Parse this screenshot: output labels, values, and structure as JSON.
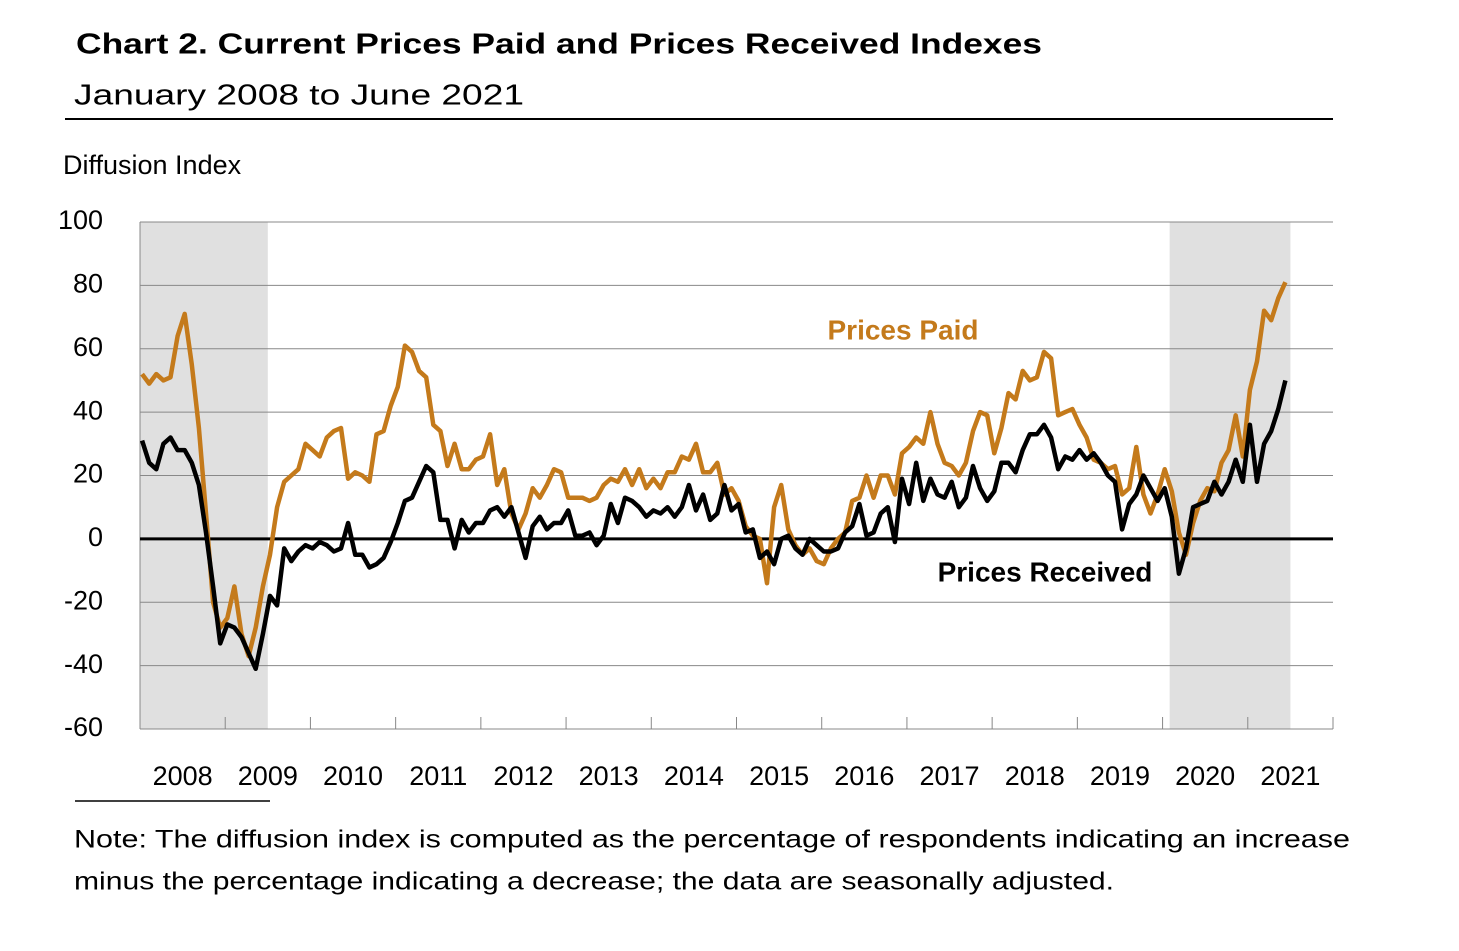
{
  "chart_data": {
    "type": "line",
    "title": "Chart 2. Current Prices Paid and Prices Received Indexes",
    "subtitle": "January 2008 to June 2021",
    "y_label": "Diffusion Index",
    "note": [
      "Note: The diffusion index is computed as the percentage of respondents indicating an increase",
      "minus the percentage indicating a decrease; the data are seasonally adjusted."
    ],
    "categories": [
      "2008",
      null,
      null,
      null,
      null,
      null,
      null,
      null,
      null,
      null,
      null,
      null,
      "2009",
      null,
      null,
      null,
      null,
      null,
      null,
      null,
      null,
      null,
      null,
      null,
      "2010",
      null,
      null,
      null,
      null,
      null,
      null,
      null,
      null,
      null,
      null,
      null,
      "2011",
      null,
      null,
      null,
      null,
      null,
      null,
      null,
      null,
      null,
      null,
      null,
      "2012",
      null,
      null,
      null,
      null,
      null,
      null,
      null,
      null,
      null,
      null,
      null,
      "2013",
      null,
      null,
      null,
      null,
      null,
      null,
      null,
      null,
      null,
      null,
      null,
      "2014",
      null,
      null,
      null,
      null,
      null,
      null,
      null,
      null,
      null,
      null,
      null,
      "2015",
      null,
      null,
      null,
      null,
      null,
      null,
      null,
      null,
      null,
      null,
      null,
      "2016",
      null,
      null,
      null,
      null,
      null,
      null,
      null,
      null,
      null,
      null,
      null,
      "2017",
      null,
      null,
      null,
      null,
      null,
      null,
      null,
      null,
      null,
      null,
      null,
      "2018",
      null,
      null,
      null,
      null,
      null,
      null,
      null,
      null,
      null,
      null,
      null,
      "2019",
      null,
      null,
      null,
      null,
      null,
      null,
      null,
      null,
      null,
      null,
      null,
      "2020",
      null,
      null,
      null,
      null,
      null,
      null,
      null,
      null,
      null,
      null,
      null,
      "2021",
      null,
      null,
      null,
      null,
      null
    ],
    "series": [
      {
        "name": "Prices Paid",
        "color": "#c47a1b",
        "values": [
          52,
          49,
          52,
          50,
          51,
          64,
          71,
          55,
          35,
          8,
          -20,
          -28,
          -25,
          -15,
          -30,
          -37,
          -28,
          -15,
          -5,
          10,
          18,
          20,
          22,
          30,
          28,
          26,
          32,
          34,
          35,
          19,
          21,
          20,
          18,
          33,
          34,
          42,
          48,
          61,
          59,
          53,
          51,
          36,
          34,
          23,
          30,
          22,
          22,
          25,
          26,
          33,
          17,
          22,
          8,
          3,
          8,
          16,
          13,
          17,
          22,
          21,
          13,
          13,
          13,
          12,
          13,
          17,
          19,
          18,
          22,
          17,
          22,
          16,
          19,
          16,
          21,
          21,
          26,
          25,
          30,
          21,
          21,
          24,
          14,
          16,
          12,
          4,
          1,
          0,
          -14,
          10,
          17,
          3,
          -2,
          -5,
          -3,
          -7,
          -8,
          -3,
          0,
          2,
          12,
          13,
          20,
          13,
          20,
          20,
          14,
          27,
          29,
          32,
          30,
          40,
          30,
          24,
          23,
          20,
          24,
          34,
          40,
          39,
          27,
          35,
          46,
          44,
          53,
          50,
          51,
          59,
          57,
          39,
          40,
          41,
          36,
          32,
          25,
          24,
          22,
          23,
          14,
          16,
          29,
          14,
          8,
          14,
          22,
          15,
          2,
          -5,
          5,
          12,
          16,
          15,
          24,
          28,
          39,
          26,
          47,
          56,
          72,
          69,
          76,
          81
        ]
      },
      {
        "name": "Prices Received",
        "color": "#000000",
        "values": [
          31,
          24,
          22,
          30,
          32,
          28,
          28,
          24,
          17,
          2,
          -15,
          -33,
          -27,
          -28,
          -31,
          -36,
          -41,
          -30,
          -18,
          -21,
          -3,
          -7,
          -4,
          -2,
          -3,
          -1,
          -2,
          -4,
          -3,
          5,
          -5,
          -5,
          -9,
          -8,
          -6,
          -1,
          5,
          12,
          13,
          18,
          23,
          21,
          6,
          6,
          -3,
          6,
          2,
          5,
          5,
          9,
          10,
          7,
          10,
          2,
          -6,
          4,
          7,
          3,
          5,
          5,
          9,
          1,
          1,
          2,
          -2,
          1,
          11,
          5,
          13,
          12,
          10,
          7,
          9,
          8,
          10,
          7,
          10,
          17,
          9,
          14,
          6,
          8,
          17,
          9,
          11,
          2,
          3,
          -6,
          -4,
          -8,
          0,
          1,
          -3,
          -5,
          0,
          -2,
          -4,
          -4,
          -3,
          2,
          4,
          11,
          1,
          2,
          8,
          10,
          -1,
          19,
          11,
          24,
          12,
          19,
          14,
          13,
          18,
          10,
          13,
          23,
          16,
          12,
          15,
          24,
          24,
          21,
          28,
          33,
          33,
          36,
          32,
          22,
          26,
          25,
          28,
          25,
          27,
          24,
          20,
          18,
          3,
          11,
          14,
          20,
          16,
          12,
          16,
          7,
          -11,
          -3,
          10,
          11,
          12,
          18,
          14,
          18,
          25,
          18,
          36,
          18,
          30,
          34,
          41,
          50
        ]
      }
    ],
    "shaded_periods": [
      {
        "start": 0,
        "end": 17
      },
      {
        "start": 145,
        "end": 161
      }
    ],
    "ylim": [
      -60,
      100
    ],
    "yticks": [
      -60,
      -40,
      -20,
      0,
      20,
      40,
      60,
      80,
      100
    ],
    "grid": true
  }
}
